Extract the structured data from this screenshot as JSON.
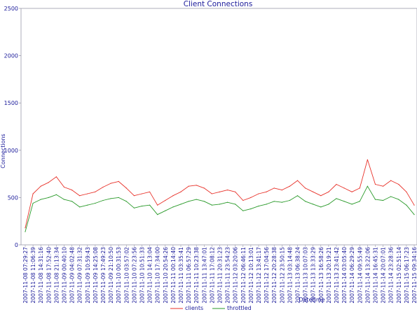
{
  "chart_data": {
    "type": "line",
    "title": "Client Connections",
    "xlabel": "Datetime",
    "ylabel": "Connections",
    "ylim": [
      0,
      2500
    ],
    "yticks": [
      0,
      500,
      1000,
      1500,
      2000,
      2500
    ],
    "grid": false,
    "legend": "bottom",
    "x": [
      "2007-11-08 07:29:27",
      "2007-11-08 11:06:39",
      "2007-11-08 14:31:16",
      "2007-11-08 17:52:40",
      "2007-11-08 21:13:34",
      "2007-11-09 00:40:10",
      "2007-11-09 04:02:48",
      "2007-11-09 07:31:32",
      "2007-11-09 10:59:43",
      "2007-11-09 14:25:08",
      "2007-11-09 17:49:23",
      "2007-11-09 21:10:50",
      "2007-11-10 00:31:53",
      "2007-11-10 03:57:02",
      "2007-11-10 07:23:56",
      "2007-11-10 10:51:33",
      "2007-11-10 14:13:04",
      "2007-11-10 17:34:00",
      "2007-11-10 20:54:26",
      "2007-11-11 00:14:40",
      "2007-11-11 03:35:41",
      "2007-11-11 06:57:29",
      "2007-11-11 10:23:38",
      "2007-11-11 13:47:01",
      "2007-11-11 17:08:12",
      "2007-11-11 20:31:23",
      "2007-11-11 23:54:23",
      "2007-11-12 03:20:06",
      "2007-11-12 06:46:11",
      "2007-11-12 10:13:01",
      "2007-11-12 13:41:17",
      "2007-11-12 17:04:56",
      "2007-11-12 20:28:38",
      "2007-11-12 23:50:15",
      "2007-11-13 03:14:48",
      "2007-11-13 06:38:24",
      "2007-11-13 10:07:03",
      "2007-11-13 13:33:29",
      "2007-11-13 16:58:26",
      "2007-11-13 20:19:21",
      "2007-11-13 23:41:42",
      "2007-11-14 03:05:40",
      "2007-11-14 06:29:29",
      "2007-11-14 09:55:49",
      "2007-11-14 13:22:06",
      "2007-11-14 16:45:31",
      "2007-11-14 20:07:01",
      "2007-11-14 23:28:36",
      "2007-11-15 02:51:14",
      "2007-11-15 06:17:23",
      "2007-11-15 09:34:16"
    ],
    "series": [
      {
        "name": "clients",
        "color": "#e8322a",
        "values": [
          180,
          540,
          620,
          660,
          720,
          610,
          580,
          520,
          540,
          560,
          610,
          650,
          670,
          600,
          520,
          540,
          560,
          420,
          470,
          520,
          560,
          620,
          630,
          600,
          540,
          560,
          580,
          560,
          470,
          500,
          540,
          560,
          600,
          580,
          620,
          680,
          600,
          560,
          520,
          560,
          640,
          600,
          560,
          600,
          900,
          640,
          620,
          680,
          640,
          560,
          420
        ]
      },
      {
        "name": "throttled",
        "color": "#2a9a2a",
        "values": [
          140,
          440,
          480,
          500,
          530,
          480,
          460,
          400,
          420,
          440,
          470,
          490,
          500,
          460,
          390,
          410,
          420,
          320,
          360,
          400,
          430,
          460,
          480,
          460,
          420,
          430,
          450,
          430,
          360,
          380,
          410,
          430,
          460,
          450,
          470,
          520,
          460,
          430,
          400,
          430,
          490,
          460,
          430,
          460,
          620,
          480,
          470,
          510,
          480,
          420,
          320
        ]
      }
    ]
  }
}
